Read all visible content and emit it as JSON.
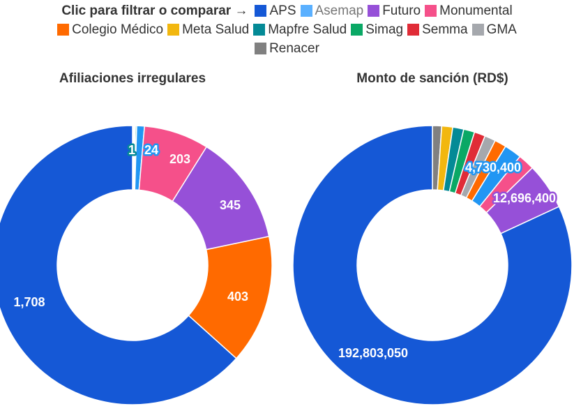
{
  "legend": {
    "prompt": "Clic para filtrar o comparar →",
    "rows": [
      [
        {
          "name": "APS",
          "color": "#1558d6"
        },
        {
          "name": "Asemap",
          "color": "#5ab0ff",
          "dim": true
        },
        {
          "name": "Futuro",
          "color": "#9650d8"
        },
        {
          "name": "Monumental",
          "color": "#f5508a"
        }
      ],
      [
        {
          "name": "Colegio Médico",
          "color": "#ff6a00"
        },
        {
          "name": "Meta Salud",
          "color": "#f2b70f"
        },
        {
          "name": "Mapfre Salud",
          "color": "#048a96"
        },
        {
          "name": "Simag",
          "color": "#0aa865"
        },
        {
          "name": "Semma",
          "color": "#e02c37"
        },
        {
          "name": "GMA",
          "color": "#a5a8ad"
        }
      ],
      [
        {
          "name": "Renacer",
          "color": "#808080"
        }
      ]
    ]
  },
  "chart_data": [
    {
      "type": "pie",
      "title": "Afiliaciones irregulares",
      "slices": [
        {
          "name": "Semma",
          "value": 2,
          "color": "#e02c37"
        },
        {
          "name": "Meta Salud",
          "value": 3,
          "color": "#f2b70f"
        },
        {
          "name": "GMA",
          "value": 3,
          "color": "#a5a8ad"
        },
        {
          "name": "Mapfre Salud",
          "value": 1,
          "color": "#048a96",
          "label": "1"
        },
        {
          "name": "Simag",
          "value": 4,
          "color": "#0aa865"
        },
        {
          "name": "Asemap",
          "value": 24,
          "color": "#2196f3",
          "label": "24"
        },
        {
          "name": "Monumental",
          "value": 203,
          "color": "#f5508a",
          "label": "203"
        },
        {
          "name": "Futuro",
          "value": 345,
          "color": "#9650d8",
          "label": "345"
        },
        {
          "name": "Colegio Médico",
          "value": 403,
          "color": "#ff6a00",
          "label": "403"
        },
        {
          "name": "APS",
          "value": 1708,
          "color": "#1558d6",
          "label": "1,708"
        }
      ]
    },
    {
      "type": "pie",
      "title": "Monto de sanción (RD$)",
      "slices": [
        {
          "name": "Renacer",
          "value": 2500000,
          "color": "#808080"
        },
        {
          "name": "Meta Salud",
          "value": 3000000,
          "color": "#f2b70f"
        },
        {
          "name": "Mapfre Salud",
          "value": 3000000,
          "color": "#048a96"
        },
        {
          "name": "Simag",
          "value": 3000000,
          "color": "#0aa865"
        },
        {
          "name": "Semma",
          "value": 3000000,
          "color": "#e02c37"
        },
        {
          "name": "GMA",
          "value": 3000000,
          "color": "#a5a8ad"
        },
        {
          "name": "Colegio Médico",
          "value": 3200000,
          "color": "#ff6a00"
        },
        {
          "name": "Asemap",
          "value": 4730400,
          "color": "#2196f3",
          "label": "4,730,400"
        },
        {
          "name": "Monumental",
          "value": 4500000,
          "color": "#f5508a"
        },
        {
          "name": "Futuro",
          "value": 12696400,
          "color": "#9650d8",
          "label": "12,696,400"
        },
        {
          "name": "APS",
          "value": 192803050,
          "color": "#1558d6",
          "label": "192,803,050"
        }
      ]
    }
  ]
}
